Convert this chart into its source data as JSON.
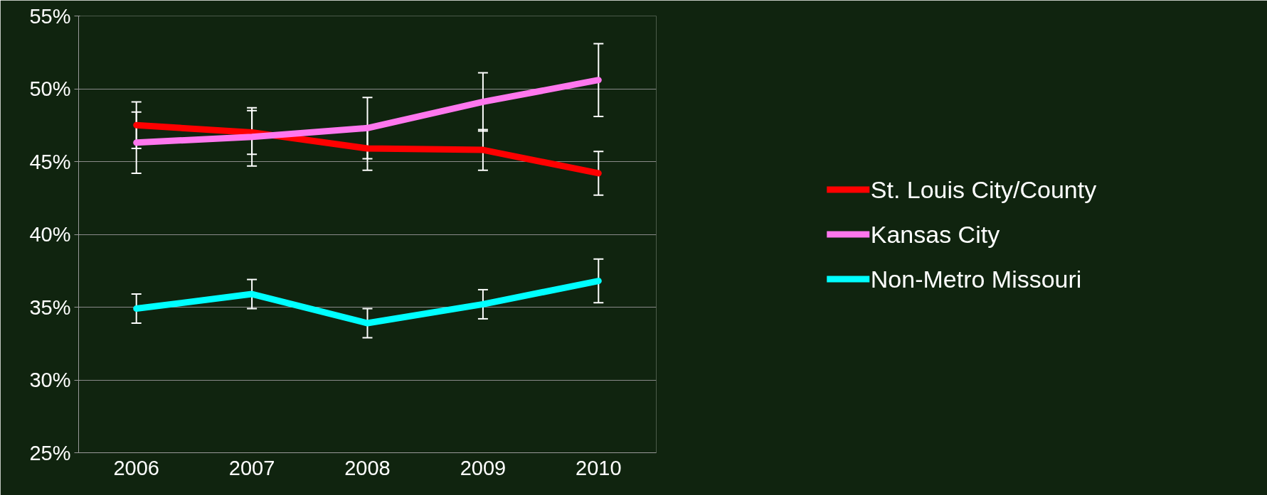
{
  "chart_data": {
    "type": "line",
    "categories": [
      "2006",
      "2007",
      "2008",
      "2009",
      "2010"
    ],
    "ylim": [
      25,
      55
    ],
    "yticks": [
      {
        "value": 25,
        "label": "25%"
      },
      {
        "value": 30,
        "label": "30%"
      },
      {
        "value": 35,
        "label": "35%"
      },
      {
        "value": 40,
        "label": "40%"
      },
      {
        "value": 45,
        "label": "45%"
      },
      {
        "value": 50,
        "label": "50%"
      },
      {
        "value": 55,
        "label": "55%"
      }
    ],
    "grid": "y",
    "legend": "right",
    "line_style": "solid",
    "marker": "none",
    "series": [
      {
        "name": "St. Louis City/County",
        "color": "#ff0000",
        "values": [
          47.5,
          47.0,
          45.9,
          45.8,
          44.2
        ],
        "errors": [
          1.6,
          1.5,
          1.5,
          1.4,
          1.5
        ]
      },
      {
        "name": "Kansas City",
        "color": "#ff77ee",
        "values": [
          46.3,
          46.7,
          47.3,
          49.1,
          50.6
        ],
        "errors": [
          2.1,
          2.0,
          2.1,
          2.0,
          2.5
        ]
      },
      {
        "name": "Non-Metro Missouri",
        "color": "#00ffff",
        "values": [
          34.9,
          35.9,
          33.9,
          35.2,
          36.8
        ],
        "errors": [
          1.0,
          1.0,
          1.0,
          1.0,
          1.5
        ]
      }
    ]
  }
}
